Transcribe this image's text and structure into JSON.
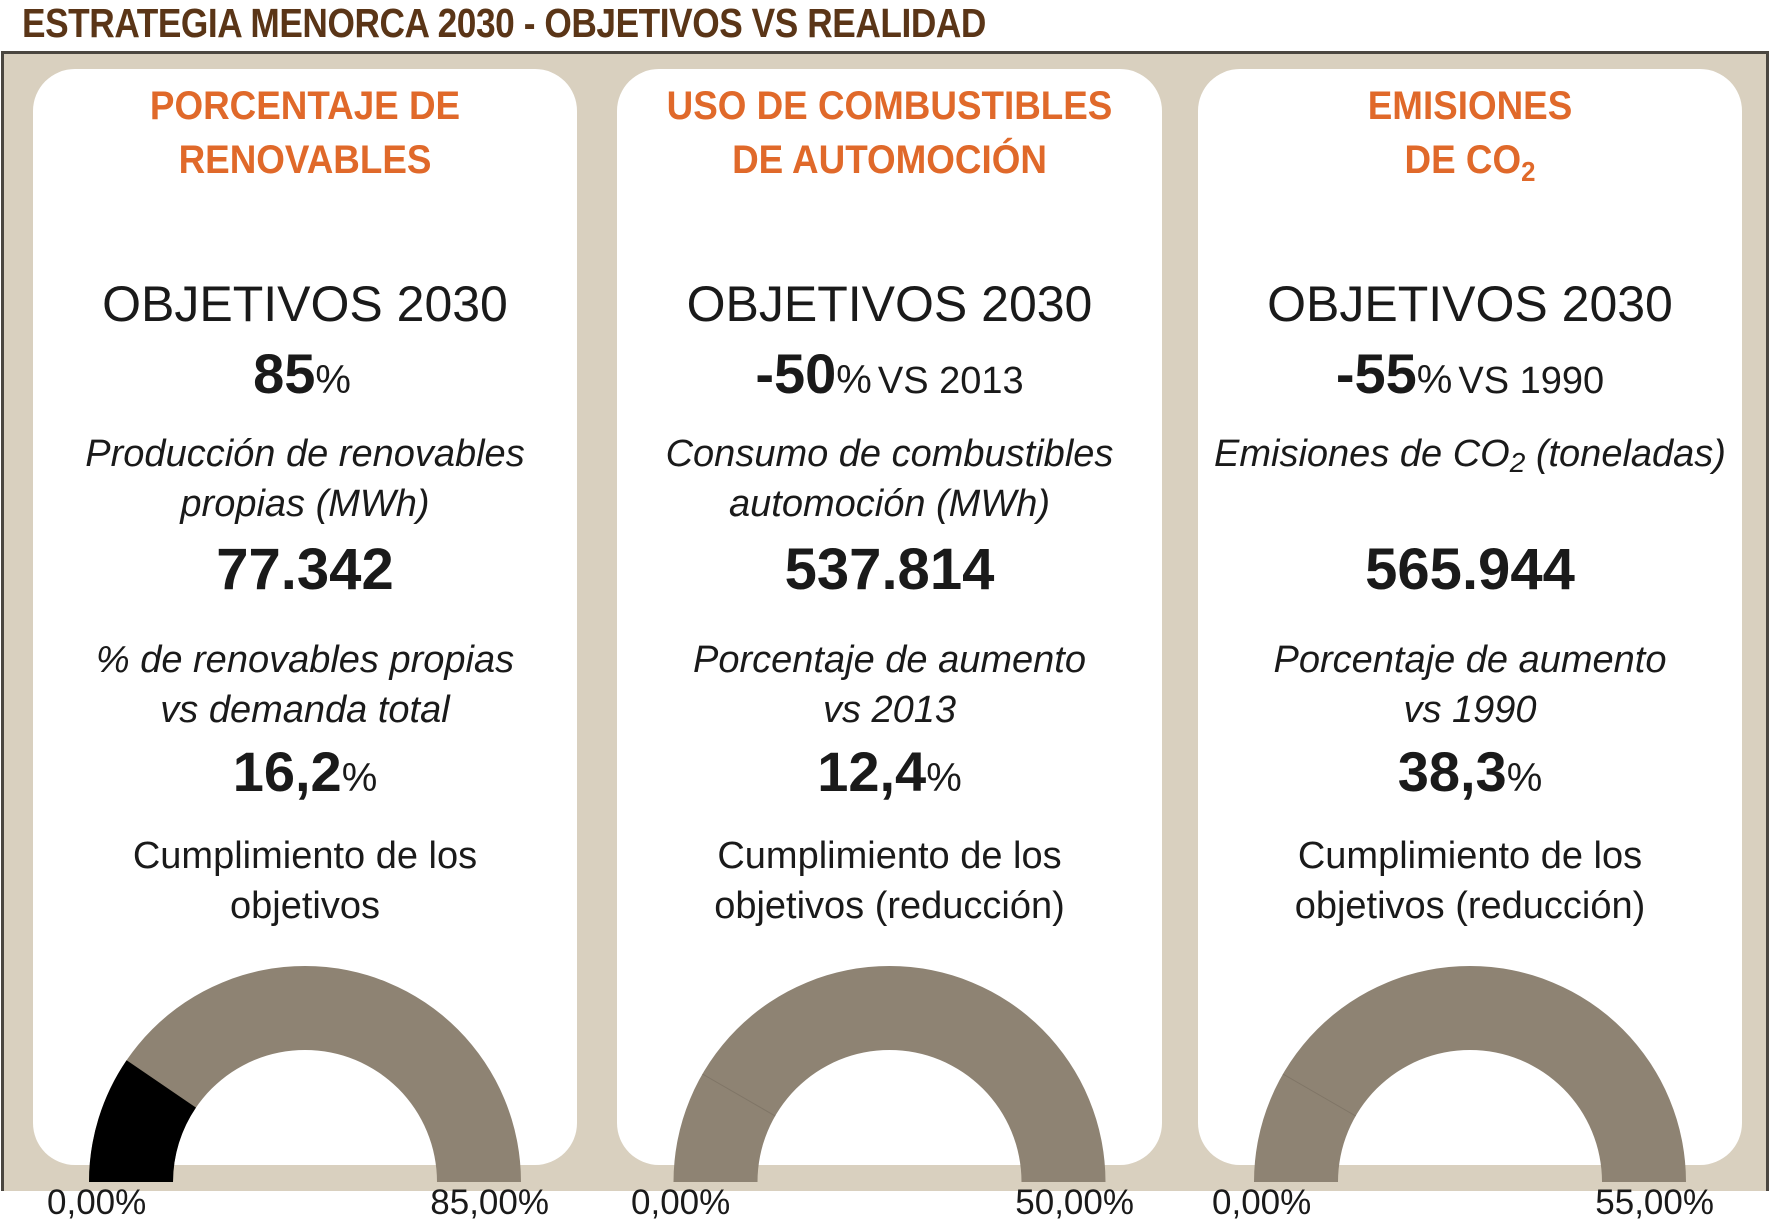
{
  "title": "ESTRATEGIA MENORCA 2030 - OBJETIVOS VS REALIDAD",
  "colors": {
    "title": "#5a3517",
    "accent": "#e0692a",
    "frame_bg": "#d9d0bf",
    "gauge_track": "#8e8373",
    "gauge_fill": "#000000"
  },
  "cards": [
    {
      "title_lines": [
        "PORCENTAJE DE",
        "RENOVABLES"
      ],
      "title_sub": "",
      "goal_heading": "OBJETIVOS 2030",
      "goal_number": "85",
      "goal_pct": "%",
      "goal_vs": "",
      "metric_label_lines": [
        "Producción de renovables",
        "propias (MWh)"
      ],
      "metric_value": "77.342",
      "pct_label_lines": [
        "% de renovables propias",
        "vs demanda total"
      ],
      "pct_number": "16,2",
      "pct_sign": "%",
      "compliance_label_lines": [
        "Cumplimiento de los",
        "objetivos"
      ],
      "gauge_min_label": "0,00%",
      "gauge_max_label": "85,00%"
    },
    {
      "title_lines": [
        "USO DE COMBUSTIBLES",
        "DE AUTOMOCIÓN"
      ],
      "title_sub": "",
      "goal_heading": "OBJETIVOS 2030",
      "goal_number": "-50",
      "goal_pct": "%",
      "goal_vs": "VS 2013",
      "metric_label_lines": [
        "Consumo de combustibles",
        "automoción (MWh)"
      ],
      "metric_value": "537.814",
      "pct_label_lines": [
        "Porcentaje de aumento",
        "vs 2013"
      ],
      "pct_number": "12,4",
      "pct_sign": "%",
      "compliance_label_lines": [
        "Cumplimiento de los",
        "objetivos (reducción)"
      ],
      "gauge_min_label": "0,00%",
      "gauge_max_label": "50,00%"
    },
    {
      "title_lines": [
        "EMISIONES",
        "DE CO"
      ],
      "title_sub": "2",
      "goal_heading": "OBJETIVOS 2030",
      "goal_number": "-55",
      "goal_pct": "%",
      "goal_vs": "VS 1990",
      "metric_label_pre": "Emisiones de CO",
      "metric_label_sub": "2",
      "metric_label_post": " (toneladas)",
      "metric_value": "565.944",
      "pct_label_lines": [
        "Porcentaje de aumento",
        "vs 1990"
      ],
      "pct_number": "38,3",
      "pct_sign": "%",
      "compliance_label_lines": [
        "Cumplimiento de los",
        "objetivos (reducción)"
      ],
      "gauge_min_label": "0,00%",
      "gauge_max_label": "55,00%"
    }
  ],
  "chart_data": [
    {
      "type": "gauge",
      "title": "Cumplimiento de los objetivos",
      "min": 0,
      "max": 85,
      "value": 16.2,
      "unit": "%",
      "min_label": "0,00%",
      "max_label": "85,00%"
    },
    {
      "type": "gauge",
      "title": "Cumplimiento de los objetivos (reducción)",
      "min": 0,
      "max": 50,
      "value": 0,
      "unit": "%",
      "min_label": "0,00%",
      "max_label": "50,00%"
    },
    {
      "type": "gauge",
      "title": "Cumplimiento de los objetivos (reducción)",
      "min": 0,
      "max": 55,
      "value": 0,
      "unit": "%",
      "min_label": "0,00%",
      "max_label": "55,00%"
    }
  ]
}
